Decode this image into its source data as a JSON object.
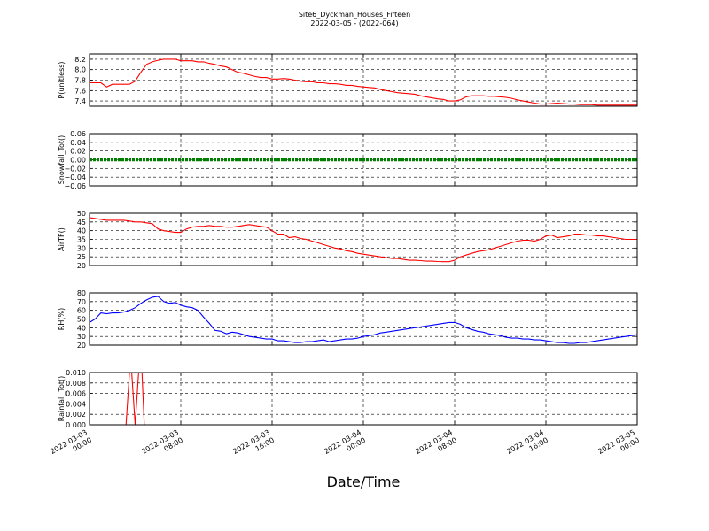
{
  "figure": {
    "title_line1": "Site6_Dyckman_Houses_Fifteen",
    "title_line2": "2022-03-05 - (2022-064)",
    "xlabel": "Date/Time"
  },
  "chart_data": [
    {
      "type": "line",
      "id": "pressure",
      "ylabel": "P(unitless)",
      "ylim": [
        7.3,
        8.3
      ],
      "yticks": [
        "7.4",
        "7.6",
        "7.8",
        "8.0",
        "8.2"
      ],
      "ytick_values": [
        7.4,
        7.6,
        7.8,
        8.0,
        8.2
      ],
      "color": "#ff0000",
      "series": [
        {
          "x": [
            0,
            0.5,
            1,
            1.5,
            2,
            2.5,
            3,
            3.5,
            4,
            4.5,
            5,
            5.5,
            6,
            6.5,
            7,
            7.5,
            8,
            8.5,
            9,
            9.5,
            10,
            10.5,
            11,
            11.5,
            12,
            12.5,
            13,
            13.5,
            14,
            14.5,
            15,
            15.5,
            16,
            16.5,
            17,
            17.5,
            18,
            18.5,
            19,
            19.5,
            20,
            20.5,
            21,
            21.5,
            22,
            22.5,
            23,
            23.5,
            24,
            24.5,
            25,
            25.5,
            26,
            26.5,
            27,
            27.5,
            28,
            28.5,
            29,
            29.5,
            30,
            30.5,
            31,
            31.5,
            32,
            32.5,
            33,
            33.5,
            34,
            34.5,
            35,
            35.5,
            36,
            36.5,
            37,
            37.5,
            38,
            38.5,
            39,
            39.5,
            40,
            40.5,
            41,
            41.5,
            42,
            42.5,
            43,
            43.5,
            44,
            44.5,
            45,
            45.5,
            46,
            46.5,
            47,
            47.5,
            48
          ],
          "values": [
            7.75,
            7.75,
            7.75,
            7.67,
            7.72,
            7.72,
            7.72,
            7.72,
            7.78,
            7.95,
            8.1,
            8.15,
            8.18,
            8.2,
            8.2,
            8.2,
            8.17,
            8.17,
            8.17,
            8.15,
            8.15,
            8.12,
            8.1,
            8.07,
            8.05,
            8.0,
            7.95,
            7.93,
            7.9,
            7.87,
            7.85,
            7.85,
            7.82,
            7.82,
            7.83,
            7.82,
            7.8,
            7.78,
            7.77,
            7.77,
            7.75,
            7.75,
            7.73,
            7.73,
            7.72,
            7.7,
            7.7,
            7.68,
            7.67,
            7.66,
            7.65,
            7.62,
            7.6,
            7.58,
            7.56,
            7.55,
            7.54,
            7.53,
            7.5,
            7.48,
            7.46,
            7.44,
            7.43,
            7.4,
            7.4,
            7.42,
            7.48,
            7.5,
            7.5,
            7.5,
            7.49,
            7.49,
            7.48,
            7.47,
            7.45,
            7.42,
            7.4,
            7.38,
            7.36,
            7.34,
            7.34,
            7.35,
            7.36,
            7.35,
            7.34,
            7.34,
            7.33,
            7.33,
            7.33,
            7.32,
            7.32,
            7.32,
            7.32,
            7.32,
            7.32,
            7.32,
            7.32
          ]
        }
      ]
    },
    {
      "type": "line",
      "id": "snowfall",
      "ylabel": "Snowfall_Tot()",
      "ylim": [
        -0.06,
        0.06
      ],
      "yticks": [
        "0.06",
        "0.04",
        "0.02",
        "0.00",
        "−0.02",
        "−0.04",
        "−0.06"
      ],
      "ytick_values": [
        0.06,
        0.04,
        0.02,
        0.0,
        -0.02,
        -0.04,
        -0.06
      ],
      "color": "#008000",
      "series": [
        {
          "x": [
            0,
            48
          ],
          "values": [
            0,
            0
          ]
        }
      ]
    },
    {
      "type": "line",
      "id": "airtf",
      "ylabel": "AirTF()",
      "ylim": [
        20,
        50
      ],
      "yticks": [
        "50",
        "45",
        "40",
        "35",
        "30",
        "25",
        "20"
      ],
      "ytick_values": [
        50,
        45,
        40,
        35,
        30,
        25,
        20
      ],
      "color": "#ff0000",
      "series": [
        {
          "x": [
            0,
            0.5,
            1,
            1.5,
            2,
            2.5,
            3,
            3.5,
            4,
            4.5,
            5,
            5.5,
            6,
            6.5,
            7,
            7.5,
            8,
            8.5,
            9,
            9.5,
            10,
            10.5,
            11,
            11.5,
            12,
            12.5,
            13,
            13.5,
            14,
            14.5,
            15,
            15.5,
            16,
            16.5,
            17,
            17.5,
            18,
            18.5,
            19,
            19.5,
            20,
            20.5,
            21,
            21.5,
            22,
            22.5,
            23,
            23.5,
            24,
            24.5,
            25,
            25.5,
            26,
            26.5,
            27,
            27.5,
            28,
            28.5,
            29,
            29.5,
            30,
            30.5,
            31,
            31.5,
            32,
            32.5,
            33,
            33.5,
            34,
            34.5,
            35,
            35.5,
            36,
            36.5,
            37,
            37.5,
            38,
            38.5,
            39,
            39.5,
            40,
            40.5,
            41,
            41.5,
            42,
            42.5,
            43,
            43.5,
            44,
            44.5,
            45,
            45.5,
            46,
            46.5,
            47,
            47.5,
            48
          ],
          "values": [
            47.5,
            47,
            46.5,
            46,
            46,
            46,
            46,
            45.5,
            45,
            45,
            44.5,
            44,
            41,
            40,
            39.5,
            39,
            39,
            41,
            42,
            42.5,
            42.5,
            43,
            42.5,
            42.5,
            42,
            42,
            42.5,
            43,
            43.5,
            43,
            42.5,
            42,
            40,
            38,
            38,
            36,
            36.5,
            35.5,
            35,
            34,
            33,
            32,
            31,
            30,
            29.5,
            28.5,
            28,
            27,
            26.5,
            26,
            25.5,
            25,
            24.5,
            24,
            24,
            23.5,
            23,
            23,
            22.8,
            22.5,
            22.5,
            22.3,
            22.2,
            22.2,
            23,
            25,
            26,
            27,
            28,
            28.5,
            29,
            30,
            31,
            32,
            33,
            34,
            34.5,
            34.5,
            34,
            35,
            37,
            37.5,
            36,
            36.5,
            37,
            38,
            38,
            37.5,
            37.5,
            37,
            37,
            36.5,
            36,
            35.5,
            35,
            35,
            35
          ]
        }
      ]
    },
    {
      "type": "line",
      "id": "rh",
      "ylabel": "RH(%)",
      "ylim": [
        20,
        80
      ],
      "yticks": [
        "80",
        "70",
        "60",
        "50",
        "40",
        "30",
        "20"
      ],
      "ytick_values": [
        80,
        70,
        60,
        50,
        40,
        30,
        20
      ],
      "color": "#0000ff",
      "series": [
        {
          "x": [
            0,
            0.5,
            1,
            1.5,
            2,
            2.5,
            3,
            3.5,
            4,
            4.5,
            5,
            5.5,
            6,
            6.5,
            7,
            7.5,
            8,
            8.5,
            9,
            9.5,
            10,
            10.5,
            11,
            11.5,
            12,
            12.5,
            13,
            13.5,
            14,
            14.5,
            15,
            15.5,
            16,
            16.5,
            17,
            17.5,
            18,
            18.5,
            19,
            19.5,
            20,
            20.5,
            21,
            21.5,
            22,
            22.5,
            23,
            23.5,
            24,
            24.5,
            25,
            25.5,
            26,
            26.5,
            27,
            27.5,
            28,
            28.5,
            29,
            29.5,
            30,
            30.5,
            31,
            31.5,
            32,
            32.5,
            33,
            33.5,
            34,
            34.5,
            35,
            35.5,
            36,
            36.5,
            37,
            37.5,
            38,
            38.5,
            39,
            39.5,
            40,
            40.5,
            41,
            41.5,
            42,
            42.5,
            43,
            43.5,
            44,
            44.5,
            45,
            45.5,
            46,
            46.5,
            47,
            47.5,
            48
          ],
          "values": [
            46,
            50,
            57,
            56,
            57,
            57,
            58,
            60,
            63,
            68,
            72,
            75,
            76,
            70,
            68,
            69,
            66,
            64,
            63,
            60,
            52,
            45,
            37,
            36,
            33,
            35,
            34,
            32,
            30,
            29,
            28,
            27,
            27,
            25,
            25,
            24,
            23,
            23,
            24,
            24,
            25,
            26,
            24,
            25,
            26,
            27,
            27,
            28,
            30,
            31,
            32,
            34,
            35,
            36,
            37,
            38,
            39,
            40,
            41,
            42,
            43,
            44,
            45,
            46,
            46,
            44,
            40,
            38,
            36,
            35,
            33,
            32,
            31,
            29,
            28,
            28,
            27,
            27,
            26,
            26,
            25,
            24,
            23,
            23,
            22,
            22,
            23,
            23,
            24,
            25,
            26,
            27,
            28,
            29,
            30,
            31,
            32
          ]
        }
      ]
    },
    {
      "type": "line",
      "id": "rainfall",
      "ylabel": "Rainfall_Tot()",
      "ylim": [
        0,
        0.01
      ],
      "yticks": [
        "0.010",
        "0.008",
        "0.006",
        "0.004",
        "0.002",
        "0.000"
      ],
      "ytick_values": [
        0.01,
        0.008,
        0.006,
        0.004,
        0.002,
        0.0
      ],
      "color": "#ff0000",
      "series": [
        {
          "x": [
            0,
            3.2,
            3.5,
            3.7,
            4.0,
            4.3,
            4.6,
            4.8,
            5.0,
            48
          ],
          "values": [
            0,
            0,
            0.01,
            0.01,
            0,
            0.01,
            0.01,
            0,
            0,
            0
          ]
        }
      ]
    }
  ],
  "xaxis": {
    "xlim": [
      0,
      48
    ],
    "tick_values": [
      0,
      8,
      16,
      24,
      32,
      40,
      48
    ],
    "ticks": [
      {
        "line1": "2022-03-03",
        "line2": "00:00"
      },
      {
        "line1": "2022-03-03",
        "line2": "08:00"
      },
      {
        "line1": "2022-03-03",
        "line2": "16:00"
      },
      {
        "line1": "2022-03-04",
        "line2": "00:00"
      },
      {
        "line1": "2022-03-04",
        "line2": "08:00"
      },
      {
        "line1": "2022-03-04",
        "line2": "16:00"
      },
      {
        "line1": "2022-03-05",
        "line2": "00:00"
      }
    ]
  }
}
